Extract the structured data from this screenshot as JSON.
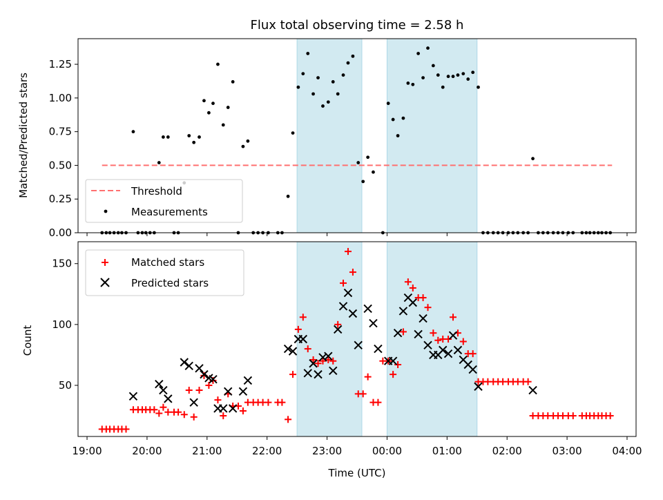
{
  "chart_data": [
    {
      "type": "scatter",
      "title": "Flux total observing time = 2.58 h",
      "ylabel": "Matched/Predicted stars",
      "xlabel": "",
      "x_unit": "hours since 19:00 UTC",
      "xlim": [
        -0.15,
        9.15
      ],
      "ylim": [
        0.0,
        1.44
      ],
      "yticks": [
        0.0,
        0.25,
        0.5,
        0.75,
        1.0,
        1.25
      ],
      "ytick_labels": [
        "0.00",
        "0.25",
        "0.50",
        "0.75",
        "1.00",
        "1.25"
      ],
      "shaded_intervals": [
        [
          3.5,
          4.58
        ],
        [
          5.0,
          6.5
        ]
      ],
      "shade_color": "#add8e6",
      "legend": {
        "position": "lower-left",
        "entries": [
          "Threshold",
          "Measurements"
        ]
      },
      "threshold": {
        "name": "Threshold",
        "y": 0.5,
        "x_range": [
          0.25,
          8.75
        ],
        "color": "#ff6f6f",
        "style": "dashed"
      },
      "series": [
        {
          "name": "Measurements",
          "color": "#000000",
          "marker": "dot",
          "points": [
            [
              0.25,
              0
            ],
            [
              0.32,
              0
            ],
            [
              0.38,
              0
            ],
            [
              0.45,
              0
            ],
            [
              0.52,
              0
            ],
            [
              0.58,
              0
            ],
            [
              0.65,
              0
            ],
            [
              0.77,
              0.75
            ],
            [
              0.85,
              0
            ],
            [
              0.92,
              0
            ],
            [
              0.98,
              0
            ],
            [
              1.05,
              0
            ],
            [
              1.12,
              0
            ],
            [
              1.2,
              0.52
            ],
            [
              1.27,
              0.71
            ],
            [
              1.35,
              0.71
            ],
            [
              1.45,
              0
            ],
            [
              1.52,
              0
            ],
            [
              1.62,
              0.37
            ],
            [
              1.7,
              0.72
            ],
            [
              1.78,
              0.67
            ],
            [
              1.87,
              0.71
            ],
            [
              1.95,
              0.98
            ],
            [
              2.03,
              0.89
            ],
            [
              2.1,
              0.96
            ],
            [
              2.18,
              1.25
            ],
            [
              2.27,
              0.8
            ],
            [
              2.35,
              0.93
            ],
            [
              2.43,
              1.12
            ],
            [
              2.52,
              0
            ],
            [
              2.6,
              0.64
            ],
            [
              2.68,
              0.68
            ],
            [
              2.77,
              0
            ],
            [
              2.85,
              0
            ],
            [
              2.93,
              0
            ],
            [
              3.02,
              0
            ],
            [
              3.18,
              0
            ],
            [
              3.25,
              0
            ],
            [
              3.35,
              0.27
            ],
            [
              3.43,
              0.74
            ],
            [
              3.52,
              1.08
            ],
            [
              3.6,
              1.18
            ],
            [
              3.68,
              1.33
            ],
            [
              3.77,
              1.03
            ],
            [
              3.85,
              1.15
            ],
            [
              3.93,
              0.94
            ],
            [
              4.02,
              0.97
            ],
            [
              4.1,
              1.12
            ],
            [
              4.18,
              1.03
            ],
            [
              4.27,
              1.17
            ],
            [
              4.35,
              1.26
            ],
            [
              4.43,
              1.31
            ],
            [
              4.52,
              0.52
            ],
            [
              4.6,
              0.38
            ],
            [
              4.68,
              0.56
            ],
            [
              4.77,
              0.45
            ],
            [
              4.93,
              0
            ],
            [
              5.02,
              0.96
            ],
            [
              5.1,
              0.84
            ],
            [
              5.18,
              0.72
            ],
            [
              5.27,
              0.85
            ],
            [
              5.35,
              1.11
            ],
            [
              5.43,
              1.1
            ],
            [
              5.52,
              1.33
            ],
            [
              5.6,
              1.15
            ],
            [
              5.68,
              1.37
            ],
            [
              5.77,
              1.24
            ],
            [
              5.85,
              1.17
            ],
            [
              5.93,
              1.08
            ],
            [
              6.02,
              1.16
            ],
            [
              6.1,
              1.16
            ],
            [
              6.18,
              1.17
            ],
            [
              6.27,
              1.18
            ],
            [
              6.35,
              1.14
            ],
            [
              6.43,
              1.19
            ],
            [
              6.52,
              1.08
            ],
            [
              6.6,
              0
            ],
            [
              6.68,
              0
            ],
            [
              6.77,
              0
            ],
            [
              6.85,
              0
            ],
            [
              6.93,
              0
            ],
            [
              7.02,
              0
            ],
            [
              7.1,
              0
            ],
            [
              7.18,
              0
            ],
            [
              7.27,
              0
            ],
            [
              7.35,
              0
            ],
            [
              7.43,
              0.55
            ],
            [
              7.52,
              0
            ],
            [
              7.6,
              0
            ],
            [
              7.68,
              0
            ],
            [
              7.77,
              0
            ],
            [
              7.85,
              0
            ],
            [
              7.93,
              0
            ],
            [
              8.02,
              0
            ],
            [
              8.1,
              0
            ],
            [
              8.25,
              0
            ],
            [
              8.32,
              0
            ],
            [
              8.38,
              0
            ],
            [
              8.45,
              0
            ],
            [
              8.52,
              0
            ],
            [
              8.58,
              0
            ],
            [
              8.65,
              0
            ],
            [
              8.72,
              0
            ]
          ]
        }
      ]
    },
    {
      "type": "scatter",
      "title": "",
      "xlabel": "Time (UTC)",
      "ylabel": "Count",
      "x_unit": "hours since 19:00 UTC",
      "xlim": [
        -0.15,
        9.15
      ],
      "ylim": [
        8,
        168
      ],
      "xticks": [
        0,
        1,
        2,
        3,
        4,
        5,
        6,
        7,
        8,
        9
      ],
      "xtick_labels": [
        "19:00",
        "20:00",
        "21:00",
        "22:00",
        "23:00",
        "00:00",
        "01:00",
        "02:00",
        "03:00",
        "04:00"
      ],
      "yticks": [
        50,
        100,
        150
      ],
      "ytick_labels": [
        "50",
        "100",
        "150"
      ],
      "shaded_intervals": [
        [
          3.5,
          4.58
        ],
        [
          5.0,
          6.5
        ]
      ],
      "shade_color": "#add8e6",
      "legend": {
        "position": "upper-left",
        "entries": [
          "Matched stars",
          "Predicted stars"
        ]
      },
      "series": [
        {
          "name": "Matched stars",
          "color": "#ff0000",
          "marker": "plus",
          "points": [
            [
              0.25,
              14
            ],
            [
              0.32,
              14
            ],
            [
              0.38,
              14
            ],
            [
              0.45,
              14
            ],
            [
              0.52,
              14
            ],
            [
              0.58,
              14
            ],
            [
              0.65,
              14
            ],
            [
              0.77,
              30
            ],
            [
              0.85,
              30
            ],
            [
              0.92,
              30
            ],
            [
              0.98,
              30
            ],
            [
              1.05,
              30
            ],
            [
              1.12,
              30
            ],
            [
              1.2,
              27
            ],
            [
              1.27,
              32
            ],
            [
              1.35,
              28
            ],
            [
              1.45,
              28
            ],
            [
              1.52,
              28
            ],
            [
              1.62,
              26
            ],
            [
              1.7,
              46
            ],
            [
              1.78,
              24
            ],
            [
              1.87,
              46
            ],
            [
              1.95,
              58
            ],
            [
              2.03,
              50
            ],
            [
              2.1,
              54
            ],
            [
              2.18,
              38
            ],
            [
              2.27,
              25
            ],
            [
              2.35,
              43
            ],
            [
              2.43,
              33
            ],
            [
              2.52,
              33
            ],
            [
              2.6,
              29
            ],
            [
              2.68,
              36
            ],
            [
              2.77,
              36
            ],
            [
              2.85,
              36
            ],
            [
              2.93,
              36
            ],
            [
              3.02,
              36
            ],
            [
              3.18,
              36
            ],
            [
              3.25,
              36
            ],
            [
              3.35,
              22
            ],
            [
              3.43,
              59
            ],
            [
              3.52,
              96
            ],
            [
              3.6,
              106
            ],
            [
              3.68,
              80
            ],
            [
              3.77,
              71
            ],
            [
              3.85,
              68
            ],
            [
              3.93,
              70
            ],
            [
              4.02,
              71
            ],
            [
              4.1,
              70
            ],
            [
              4.18,
              100
            ],
            [
              4.27,
              134
            ],
            [
              4.35,
              160
            ],
            [
              4.43,
              143
            ],
            [
              4.52,
              43
            ],
            [
              4.6,
              43
            ],
            [
              4.68,
              57
            ],
            [
              4.77,
              36
            ],
            [
              4.85,
              36
            ],
            [
              4.93,
              70
            ],
            [
              5.02,
              70
            ],
            [
              5.1,
              59
            ],
            [
              5.18,
              67
            ],
            [
              5.27,
              94
            ],
            [
              5.35,
              135
            ],
            [
              5.43,
              130
            ],
            [
              5.52,
              122
            ],
            [
              5.6,
              122
            ],
            [
              5.68,
              114
            ],
            [
              5.77,
              93
            ],
            [
              5.85,
              87
            ],
            [
              5.93,
              88
            ],
            [
              6.02,
              88
            ],
            [
              6.1,
              106
            ],
            [
              6.18,
              93
            ],
            [
              6.27,
              86
            ],
            [
              6.35,
              76
            ],
            [
              6.43,
              76
            ],
            [
              6.52,
              53
            ],
            [
              6.6,
              53
            ],
            [
              6.68,
              53
            ],
            [
              6.77,
              53
            ],
            [
              6.85,
              53
            ],
            [
              6.93,
              53
            ],
            [
              7.02,
              53
            ],
            [
              7.1,
              53
            ],
            [
              7.18,
              53
            ],
            [
              7.27,
              53
            ],
            [
              7.35,
              53
            ],
            [
              7.43,
              25
            ],
            [
              7.52,
              25
            ],
            [
              7.6,
              25
            ],
            [
              7.68,
              25
            ],
            [
              7.77,
              25
            ],
            [
              7.85,
              25
            ],
            [
              7.93,
              25
            ],
            [
              8.02,
              25
            ],
            [
              8.1,
              25
            ],
            [
              8.25,
              25
            ],
            [
              8.32,
              25
            ],
            [
              8.38,
              25
            ],
            [
              8.45,
              25
            ],
            [
              8.52,
              25
            ],
            [
              8.58,
              25
            ],
            [
              8.65,
              25
            ],
            [
              8.72,
              25
            ]
          ]
        },
        {
          "name": "Predicted stars",
          "color": "#000000",
          "marker": "x",
          "points": [
            [
              0.77,
              41
            ],
            [
              1.2,
              51
            ],
            [
              1.27,
              46
            ],
            [
              1.35,
              39
            ],
            [
              1.62,
              69
            ],
            [
              1.7,
              66
            ],
            [
              1.78,
              36
            ],
            [
              1.87,
              64
            ],
            [
              1.95,
              59
            ],
            [
              2.03,
              56
            ],
            [
              2.1,
              55
            ],
            [
              2.18,
              31
            ],
            [
              2.27,
              31
            ],
            [
              2.35,
              45
            ],
            [
              2.43,
              31
            ],
            [
              2.6,
              45
            ],
            [
              2.68,
              54
            ],
            [
              3.35,
              80
            ],
            [
              3.43,
              78
            ],
            [
              3.52,
              88
            ],
            [
              3.6,
              88
            ],
            [
              3.68,
              60
            ],
            [
              3.77,
              68
            ],
            [
              3.85,
              59
            ],
            [
              3.93,
              73
            ],
            [
              4.02,
              74
            ],
            [
              4.1,
              62
            ],
            [
              4.18,
              96
            ],
            [
              4.27,
              115
            ],
            [
              4.35,
              126
            ],
            [
              4.43,
              109
            ],
            [
              4.52,
              83
            ],
            [
              4.68,
              113
            ],
            [
              4.77,
              101
            ],
            [
              4.85,
              80
            ],
            [
              5.02,
              70
            ],
            [
              5.1,
              70
            ],
            [
              5.18,
              93
            ],
            [
              5.27,
              111
            ],
            [
              5.35,
              122
            ],
            [
              5.43,
              118
            ],
            [
              5.52,
              92
            ],
            [
              5.6,
              105
            ],
            [
              5.68,
              83
            ],
            [
              5.77,
              75
            ],
            [
              5.85,
              75
            ],
            [
              5.93,
              79
            ],
            [
              6.02,
              76
            ],
            [
              6.1,
              91
            ],
            [
              6.18,
              79
            ],
            [
              6.27,
              71
            ],
            [
              6.35,
              67
            ],
            [
              6.43,
              63
            ],
            [
              6.52,
              49
            ],
            [
              7.43,
              46
            ]
          ]
        }
      ]
    }
  ]
}
